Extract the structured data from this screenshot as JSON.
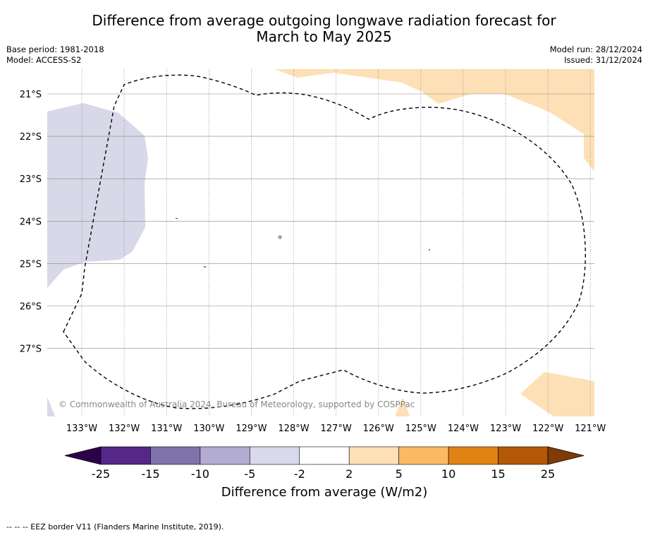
{
  "title_line1": "Difference from average outgoing longwave radiation forecast for",
  "title_line2": "March to May 2025",
  "info_left": {
    "base_period": "Base period: 1981-2018",
    "model": "Model: ACCESS-S2"
  },
  "info_right": {
    "model_run": "Model run: 28/12/2024",
    "issued": "Issued: 31/12/2024"
  },
  "map": {
    "lon_labels": [
      "133°W",
      "132°W",
      "131°W",
      "130°W",
      "129°W",
      "128°W",
      "127°W",
      "126°W",
      "125°W",
      "124°W",
      "123°W",
      "122°W",
      "121°W"
    ],
    "lat_labels": [
      "21°S",
      "22°S",
      "23°S",
      "24°S",
      "25°S",
      "26°S",
      "27°S"
    ],
    "copyright": "© Commonwealth of Australia 2024, Bureau of Meteorology, supported by COSPPac",
    "colors": {
      "below_2_to_5": "#d8d8e9",
      "above_2_to_5": "#fee0b6",
      "eez_line": "#000000"
    }
  },
  "colorbar": {
    "ticks": [
      "-25",
      "-15",
      "-10",
      "-5",
      "-2",
      "2",
      "5",
      "10",
      "15",
      "25"
    ],
    "colors": [
      "#2d004b",
      "#542788",
      "#8073ac",
      "#b2abd2",
      "#d8daeb",
      "#ffffff",
      "#fee0b6",
      "#fdb863",
      "#e08214",
      "#b35806",
      "#7f3b08"
    ],
    "label": "Difference from average (W/m2)"
  },
  "footnote": "--  --  -- EEZ border V11 (Flanders Marine Institute, 2019)."
}
